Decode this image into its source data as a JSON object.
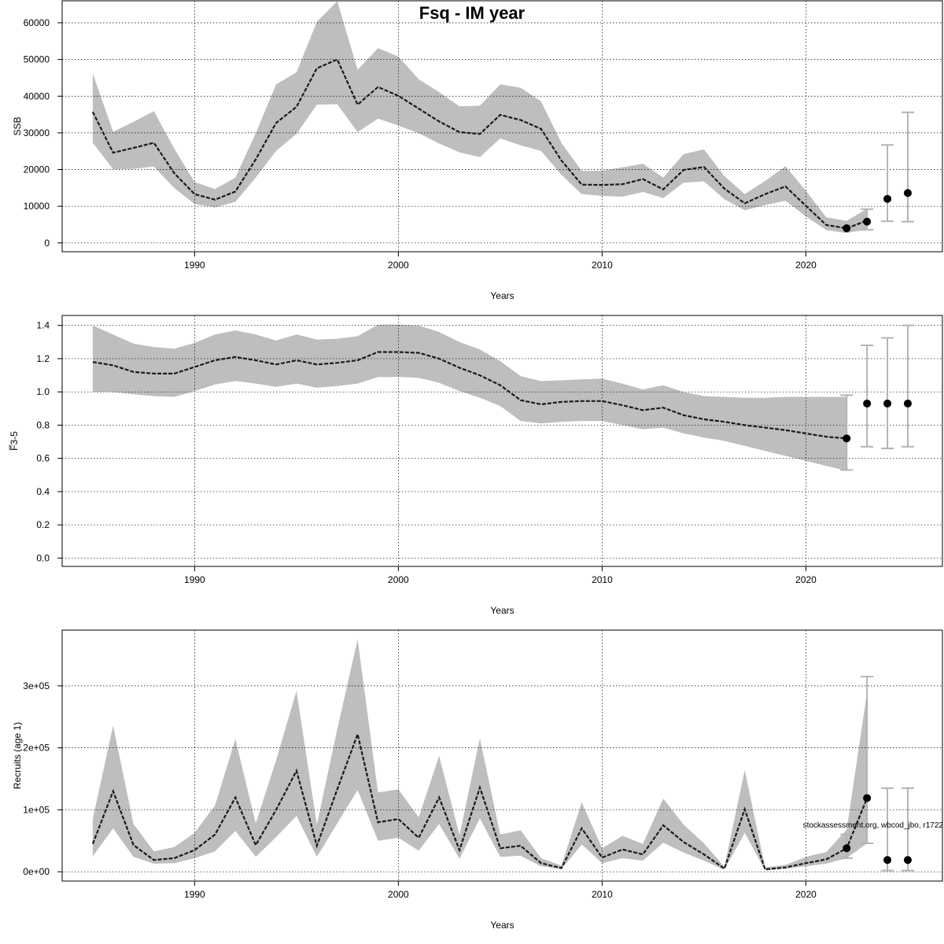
{
  "figure": {
    "title": "Fsq - IM year",
    "footnote": "stockassessment.org, wbcod_jbo, r1722"
  },
  "colors": {
    "band": "#bebebe",
    "line": "#1a1a1a",
    "errbar": "#b4b4b4",
    "point": "#000000"
  },
  "chart_data": [
    {
      "type": "line",
      "ylabel": "SSB",
      "xlabel": "Years",
      "xlim": [
        1983.5,
        2026.7
      ],
      "ylim": [
        -2400,
        66000
      ],
      "xticks": [
        1990,
        2000,
        2010,
        2020
      ],
      "xtick_labels": [
        "1990",
        "2000",
        "2010",
        "2020"
      ],
      "yticks": [
        0,
        10000,
        20000,
        30000,
        40000,
        50000,
        60000
      ],
      "ytick_labels": [
        "0",
        "10000",
        "20000",
        "30000",
        "40000",
        "50000",
        "60000"
      ],
      "grid": true,
      "x": [
        1985,
        1986,
        1987,
        1988,
        1989,
        1990,
        1991,
        1992,
        1993,
        1994,
        1995,
        1996,
        1997,
        1998,
        1999,
        2000,
        2001,
        2002,
        2003,
        2004,
        2005,
        2006,
        2007,
        2008,
        2009,
        2010,
        2011,
        2012,
        2013,
        2014,
        2015,
        2016,
        2017,
        2018,
        2019,
        2020,
        2021,
        2022,
        2023
      ],
      "estimate": [
        35700,
        24600,
        25900,
        27300,
        19000,
        13300,
        11800,
        14000,
        22800,
        32700,
        37100,
        47600,
        50000,
        37700,
        42500,
        40100,
        36600,
        33100,
        30200,
        29700,
        34900,
        33500,
        31100,
        22500,
        15900,
        15800,
        16000,
        17400,
        14600,
        19900,
        20700,
        14800,
        10800,
        13300,
        15400,
        10100,
        4900,
        4000,
        6100
      ],
      "lower": [
        27300,
        20100,
        20200,
        20800,
        15000,
        10600,
        9700,
        11200,
        17800,
        25100,
        29700,
        37700,
        37800,
        30200,
        33900,
        32000,
        29900,
        27100,
        24700,
        23400,
        28500,
        26600,
        25100,
        18600,
        13300,
        12800,
        12600,
        13900,
        12200,
        16400,
        16800,
        11900,
        8900,
        10300,
        11500,
        7200,
        3500,
        2700,
        3700
      ],
      "upper": [
        46200,
        30300,
        33000,
        35900,
        25700,
        16600,
        14700,
        17800,
        29900,
        43200,
        46500,
        60300,
        65900,
        47200,
        53100,
        50800,
        44600,
        41100,
        37200,
        37400,
        43200,
        42300,
        38600,
        27300,
        19600,
        19700,
        20600,
        21600,
        17800,
        24200,
        25500,
        18200,
        13300,
        16900,
        20900,
        14200,
        7000,
        6000,
        9300
      ],
      "points": {
        "x": [
          2022,
          2023,
          2024,
          2025
        ],
        "y": [
          4000,
          5800,
          12000,
          13600
        ]
      },
      "intervals": [
        {
          "x": 2023,
          "low": 3600,
          "high": 9200
        },
        {
          "x": 2024,
          "low": 5900,
          "high": 26700
        },
        {
          "x": 2025,
          "low": 5800,
          "high": 35600
        }
      ]
    },
    {
      "type": "line",
      "ylabel": "F̅3-5",
      "xlabel": "Years",
      "xlim": [
        1983.5,
        2026.7
      ],
      "ylim": [
        -0.05,
        1.46
      ],
      "xticks": [
        1990,
        2000,
        2010,
        2020
      ],
      "xtick_labels": [
        "1990",
        "2000",
        "2010",
        "2020"
      ],
      "yticks": [
        0.0,
        0.2,
        0.4,
        0.6,
        0.8,
        1.0,
        1.2,
        1.4
      ],
      "ytick_labels": [
        "0.0",
        "0.2",
        "0.4",
        "0.6",
        "0.8",
        "1.0",
        "1.2",
        "1.4"
      ],
      "grid": true,
      "x": [
        1985,
        1986,
        1987,
        1988,
        1989,
        1990,
        1991,
        1992,
        1993,
        1994,
        1995,
        1996,
        1997,
        1998,
        1999,
        2000,
        2001,
        2002,
        2003,
        2004,
        2005,
        2006,
        2007,
        2008,
        2009,
        2010,
        2011,
        2012,
        2013,
        2014,
        2015,
        2016,
        2017,
        2018,
        2019,
        2020,
        2021,
        2022
      ],
      "estimate": [
        1.18,
        1.16,
        1.12,
        1.11,
        1.11,
        1.15,
        1.19,
        1.21,
        1.19,
        1.165,
        1.19,
        1.165,
        1.175,
        1.19,
        1.24,
        1.24,
        1.235,
        1.2,
        1.145,
        1.1,
        1.04,
        0.95,
        0.925,
        0.94,
        0.945,
        0.945,
        0.92,
        0.89,
        0.905,
        0.86,
        0.835,
        0.82,
        0.8,
        0.785,
        0.77,
        0.75,
        0.73,
        0.72
      ],
      "lower": [
        1.0,
        1.0,
        0.985,
        0.975,
        0.97,
        1.005,
        1.045,
        1.065,
        1.05,
        1.03,
        1.05,
        1.025,
        1.035,
        1.05,
        1.09,
        1.09,
        1.085,
        1.055,
        1.005,
        0.965,
        0.915,
        0.825,
        0.81,
        0.82,
        0.825,
        0.825,
        0.8,
        0.775,
        0.785,
        0.75,
        0.725,
        0.705,
        0.675,
        0.645,
        0.615,
        0.585,
        0.555,
        0.525
      ],
      "upper": [
        1.4,
        1.345,
        1.29,
        1.27,
        1.26,
        1.295,
        1.345,
        1.37,
        1.345,
        1.31,
        1.345,
        1.315,
        1.32,
        1.335,
        1.405,
        1.405,
        1.4,
        1.36,
        1.3,
        1.255,
        1.185,
        1.095,
        1.065,
        1.07,
        1.075,
        1.08,
        1.05,
        1.015,
        1.04,
        1.0,
        0.975,
        0.97,
        0.965,
        0.965,
        0.97,
        0.97,
        0.97,
        0.97
      ],
      "points": {
        "x": [
          2022,
          2023,
          2024,
          2025
        ],
        "y": [
          0.72,
          0.93,
          0.93,
          0.93
        ]
      },
      "intervals": [
        {
          "x": 2022,
          "low": 0.53,
          "high": 0.98
        },
        {
          "x": 2023,
          "low": 0.67,
          "high": 1.28
        },
        {
          "x": 2024,
          "low": 0.66,
          "high": 1.325
        },
        {
          "x": 2025,
          "low": 0.67,
          "high": 1.4
        }
      ]
    },
    {
      "type": "line",
      "ylabel": "Recruits (age 1)",
      "xlabel": "Years",
      "xlim": [
        1983.5,
        2026.7
      ],
      "ylim": [
        -15000,
        390000
      ],
      "xticks": [
        1990,
        2000,
        2010,
        2020
      ],
      "xtick_labels": [
        "1990",
        "2000",
        "2010",
        "2020"
      ],
      "yticks": [
        0,
        100000,
        200000,
        300000
      ],
      "ytick_labels": [
        "0e+00",
        "1e+05",
        "2e+05",
        "3e+05"
      ],
      "grid": true,
      "x": [
        1985,
        1986,
        1987,
        1988,
        1989,
        1990,
        1991,
        1992,
        1993,
        1994,
        1995,
        1996,
        1997,
        1998,
        1999,
        2000,
        2001,
        2002,
        2003,
        2004,
        2005,
        2006,
        2007,
        2008,
        2009,
        2010,
        2011,
        2012,
        2013,
        2014,
        2015,
        2016,
        2017,
        2018,
        2019,
        2020,
        2021,
        2022,
        2023
      ],
      "estimate": [
        45000,
        130000,
        43000,
        19000,
        22000,
        35000,
        60000,
        120000,
        43000,
        100000,
        163000,
        42000,
        133000,
        222000,
        80000,
        85000,
        55000,
        120000,
        35000,
        136000,
        38000,
        42000,
        14000,
        6000,
        70000,
        23000,
        36000,
        28000,
        75000,
        48000,
        28000,
        5000,
        101000,
        4000,
        7000,
        14000,
        20000,
        38000,
        119000
      ],
      "lower": [
        25000,
        70000,
        24000,
        13000,
        14000,
        22000,
        33000,
        66000,
        24000,
        56000,
        90000,
        24000,
        78000,
        132000,
        50000,
        55000,
        34000,
        77000,
        21000,
        86000,
        24000,
        26000,
        9000,
        4000,
        44000,
        14000,
        22000,
        18000,
        47000,
        31000,
        18000,
        3000,
        63000,
        2000,
        5000,
        9000,
        13000,
        22000,
        46000
      ],
      "upper": [
        85000,
        236000,
        77000,
        33000,
        40000,
        63000,
        107000,
        214000,
        78000,
        180000,
        292000,
        76000,
        230000,
        375000,
        128000,
        133000,
        88000,
        187000,
        59000,
        215000,
        60000,
        67000,
        22000,
        10000,
        112000,
        38000,
        58000,
        45000,
        118000,
        76000,
        46000,
        8000,
        164000,
        7000,
        11000,
        24000,
        32000,
        68000,
        290000
      ],
      "points": {
        "x": [
          2022,
          2023,
          2024,
          2025
        ],
        "y": [
          38000,
          119000,
          19000,
          19000
        ]
      },
      "intervals": [
        {
          "x": 2022,
          "low": 22000,
          "high": 60000
        },
        {
          "x": 2023,
          "low": 46000,
          "high": 315000
        },
        {
          "x": 2024,
          "low": 2000,
          "high": 135000
        },
        {
          "x": 2025,
          "low": 2000,
          "high": 135000
        }
      ]
    }
  ]
}
